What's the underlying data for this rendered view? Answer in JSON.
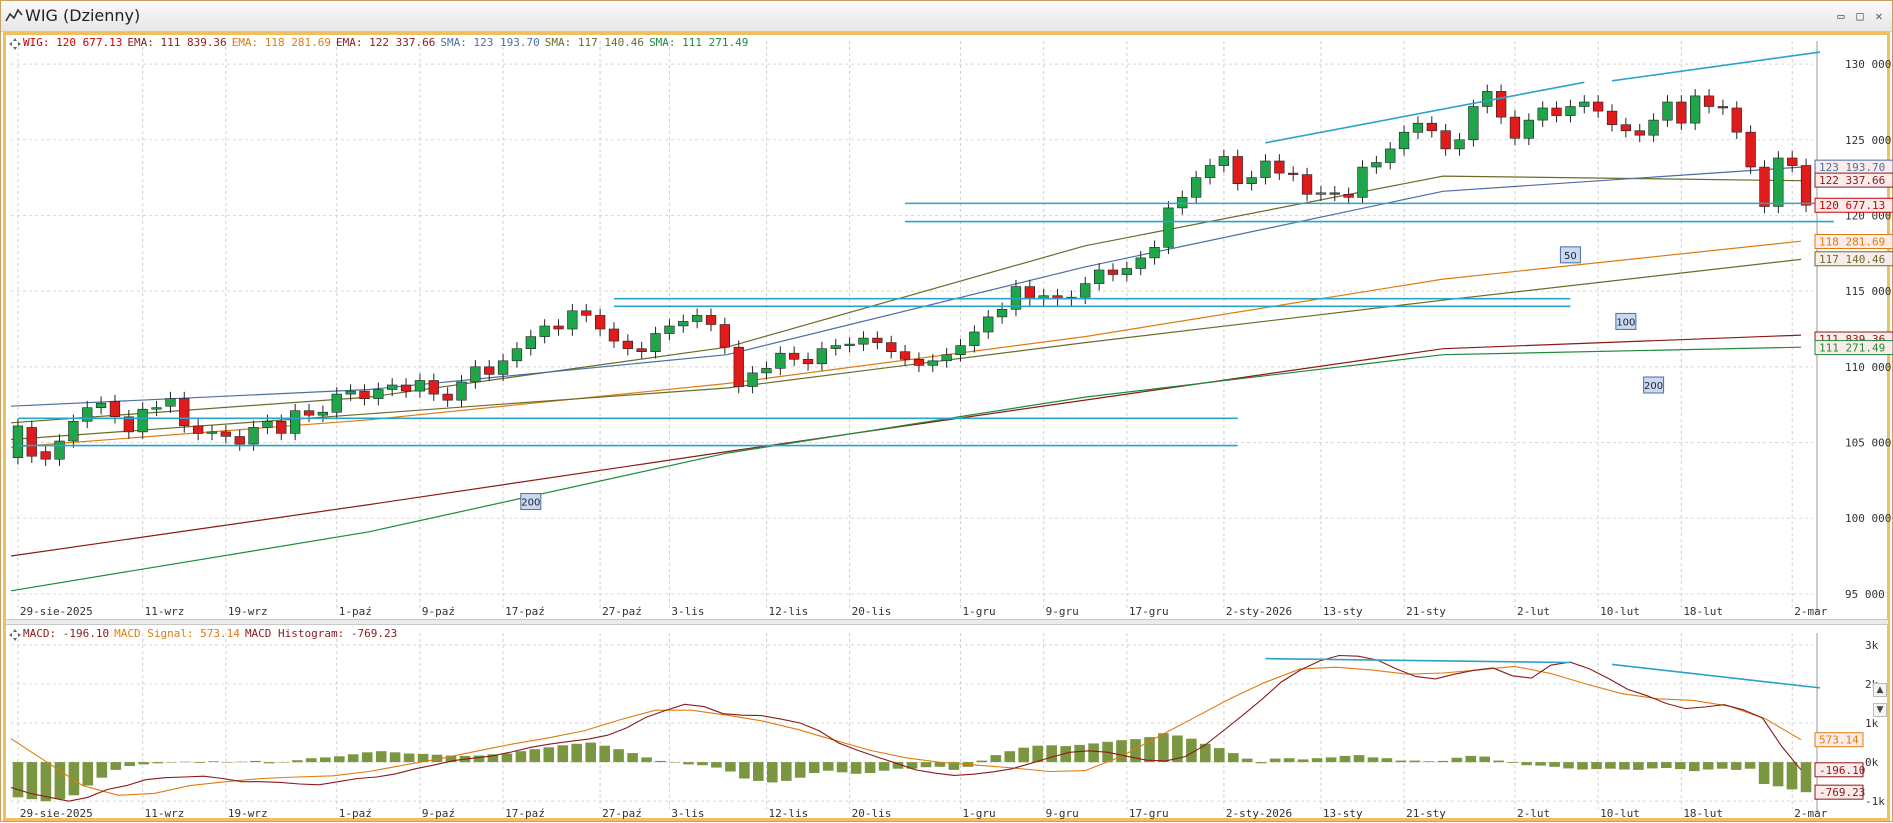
{
  "window": {
    "title": "WIG (Dzienny)",
    "btn_min": "▭",
    "btn_max": "□",
    "btn_close": "✕"
  },
  "price_legend": [
    {
      "label": "WIG:",
      "value": "120 677.13",
      "color": "#cc0000"
    },
    {
      "label": "EMA:",
      "value": "111 839.36",
      "color": "#8b1a1a"
    },
    {
      "label": "EMA:",
      "value": "118 281.69",
      "color": "#e07b10"
    },
    {
      "label": "EMA:",
      "value": "122 337.66",
      "color": "#8b1a1a"
    },
    {
      "label": "SMA:",
      "value": "123 193.70",
      "color": "#4a6fa5"
    },
    {
      "label": "SMA:",
      "value": "117 140.46",
      "color": "#6b6b2a"
    },
    {
      "label": "SMA:",
      "value": "111 271.49",
      "color": "#1f8a3b"
    }
  ],
  "macd_legend": [
    {
      "label": "MACD:",
      "value": "-196.10",
      "color": "#8b1a1a"
    },
    {
      "label": "MACD Signal:",
      "value": "573.14",
      "color": "#e07b10"
    },
    {
      "label": "MACD Histogram:",
      "value": "-769.23",
      "color": "#8b1a1a"
    }
  ],
  "chart_data": [
    {
      "type": "candlestick",
      "title": "WIG (Dzienny)",
      "ylim": [
        94000,
        131000
      ],
      "y_ticks": [
        95000,
        100000,
        105000,
        110000,
        115000,
        120000,
        125000,
        130000
      ],
      "y_tick_labels": [
        "95 000",
        "100 000",
        "105 000",
        "110 000",
        "115 000",
        "120 000",
        "125 000",
        "130 000"
      ],
      "x_labels": [
        "29-sie-2025",
        "11-wrz",
        "19-wrz",
        "1-paź",
        "9-paź",
        "17-paź",
        "27-paź",
        "3-lis",
        "12-lis",
        "20-lis",
        "1-gru",
        "9-gru",
        "17-gru",
        "2-sty-2026",
        "13-sty",
        "21-sty",
        "2-lut",
        "10-lut",
        "18-lut",
        "2-mar"
      ],
      "x_label_sessions": [
        0,
        9,
        15,
        23,
        29,
        35,
        42,
        47,
        54,
        60,
        68,
        74,
        80,
        87,
        94,
        100,
        108,
        114,
        120,
        128
      ],
      "candles_close": [
        106100,
        104100,
        103900,
        105100,
        106400,
        107300,
        107600,
        106700,
        105700,
        107200,
        107300,
        107900,
        106100,
        105600,
        105700,
        105400,
        104900,
        106000,
        106400,
        105600,
        107100,
        106800,
        107000,
        108200,
        108400,
        107900,
        108500,
        108800,
        108400,
        109100,
        108200,
        107800,
        109000,
        110000,
        109500,
        110400,
        111200,
        112000,
        112700,
        112500,
        113700,
        113400,
        112500,
        111700,
        111200,
        111000,
        112200,
        112700,
        113000,
        113400,
        112800,
        111300,
        108700,
        109600,
        109900,
        110900,
        110500,
        110200,
        111200,
        111400,
        111500,
        111900,
        111600,
        111000,
        110500,
        110100,
        110400,
        110800,
        111400,
        112300,
        113300,
        113800,
        115300,
        114500,
        114700,
        114500,
        114600,
        115500,
        116400,
        116100,
        116500,
        117200,
        117900,
        120500,
        121200,
        122500,
        123300,
        123900,
        122100,
        122500,
        123600,
        122800,
        122700,
        121400,
        121500,
        121400,
        121200,
        123200,
        123500,
        124400,
        125500,
        126100,
        125600,
        124400,
        125000,
        127200,
        128200,
        126500,
        125100,
        126300,
        127100,
        126600,
        127200,
        127500,
        126900,
        126000,
        125600,
        125300,
        126300,
        127500,
        126100,
        127900,
        127200,
        127100,
        125500,
        123200,
        120600,
        123800,
        123300,
        120677
      ],
      "candles_open": [
        104000,
        106000,
        104400,
        103900,
        105100,
        106400,
        107300,
        107700,
        106700,
        105700,
        107200,
        107400,
        107900,
        106100,
        105600,
        105700,
        105400,
        104900,
        106000,
        106400,
        105600,
        107100,
        106800,
        107000,
        108200,
        108400,
        107900,
        108500,
        108800,
        108400,
        109100,
        108200,
        107800,
        109000,
        110000,
        109500,
        110400,
        111200,
        112000,
        112700,
        112500,
        113700,
        113400,
        112500,
        111700,
        111200,
        111000,
        112200,
        112700,
        113000,
        113400,
        112800,
        111300,
        108700,
        109600,
        109900,
        110900,
        110500,
        110200,
        111200,
        111400,
        111500,
        111900,
        111600,
        111000,
        110500,
        110100,
        110400,
        110800,
        111400,
        112300,
        113300,
        113800,
        115300,
        114500,
        114700,
        114500,
        114600,
        115500,
        116400,
        116100,
        116500,
        117200,
        117900,
        120500,
        121200,
        122500,
        123300,
        123900,
        122100,
        122500,
        123600,
        122800,
        122700,
        121400,
        121500,
        121400,
        121200,
        123200,
        123500,
        124400,
        125500,
        126100,
        125600,
        124400,
        125000,
        127200,
        128200,
        126500,
        125100,
        126300,
        127100,
        126600,
        127200,
        127500,
        126900,
        126000,
        125600,
        125300,
        126300,
        127500,
        126100,
        127900,
        127200,
        127100,
        125500,
        123200,
        120600,
        123800,
        123300
      ],
      "ema_200": [
        97500,
        100900,
        104400,
        107800,
        111200,
        112100
      ],
      "sma_200": [
        95200,
        99100,
        104300,
        108000,
        110800,
        111300
      ],
      "sma_100": [
        105200,
        106900,
        108600,
        111600,
        114400,
        117100
      ],
      "ema_100": [
        104700,
        106500,
        108900,
        112000,
        115800,
        118300
      ],
      "sma_50": [
        107400,
        108500,
        110800,
        116600,
        121600,
        123200
      ],
      "ema_50": [
        106300,
        108000,
        111300,
        118000,
        122600,
        122300
      ],
      "markers": [
        "50",
        "100",
        "200",
        "200"
      ],
      "last_value_labels": [
        "123 193.70",
        "122 337.66",
        "120 677.13",
        "118 281.69",
        "117 140.46",
        "111 839.36",
        "111 271.49"
      ],
      "last_value_colors": [
        "#4a6fa5",
        "#8b1a1a",
        "#cc0000",
        "#e07b10",
        "#6b6b2a",
        "#8b1a1a",
        "#1f8a3b"
      ],
      "last_value_ys": [
        123193.7,
        122337.66,
        120677.13,
        118281.69,
        117140.46,
        111839.36,
        111271.49
      ]
    },
    {
      "type": "macd",
      "ylim": [
        -1200,
        3100
      ],
      "y_ticks": [
        -1000,
        0,
        1000,
        2000,
        3000
      ],
      "y_tick_labels": [
        "-1k",
        "0k",
        "1k",
        "2k",
        "3k"
      ],
      "histogram": [
        -900,
        -950,
        -1000,
        -950,
        -850,
        -600,
        -400,
        -200,
        -100,
        -60,
        -30,
        -10,
        10,
        -20,
        20,
        0,
        10,
        30,
        -30,
        0,
        50,
        100,
        120,
        150,
        200,
        250,
        280,
        250,
        220,
        210,
        190,
        170,
        160,
        170,
        200,
        220,
        280,
        330,
        380,
        430,
        470,
        500,
        420,
        330,
        230,
        120,
        30,
        0,
        -60,
        -80,
        -140,
        -240,
        -420,
        -480,
        -520,
        -480,
        -400,
        -280,
        -220,
        -260,
        -300,
        -280,
        -220,
        -170,
        -170,
        -130,
        -120,
        -200,
        -120,
        40,
        180,
        280,
        370,
        420,
        430,
        410,
        440,
        480,
        520,
        560,
        590,
        640,
        740,
        680,
        600,
        470,
        360,
        230,
        90,
        -30,
        90,
        100,
        70,
        100,
        120,
        160,
        180,
        120,
        100,
        40,
        40,
        20,
        30,
        110,
        160,
        140,
        40,
        -20,
        -80,
        -90,
        -120,
        -160,
        -190,
        -180,
        -170,
        -190,
        -200,
        -160,
        -150,
        -180,
        -230,
        -190,
        -170,
        -200,
        -170,
        -560,
        -620,
        -700,
        -769.23
      ],
      "macd": [
        -650,
        -800,
        -900,
        -1000,
        -900,
        -700,
        -600,
        -450,
        -400,
        -380,
        -360,
        -420,
        -500,
        -500,
        -520,
        -560,
        -580,
        -500,
        -420,
        -380,
        -300,
        -170,
        -70,
        40,
        100,
        160,
        260,
        380,
        460,
        530,
        590,
        690,
        880,
        1150,
        1320,
        1480,
        1420,
        1240,
        1200,
        1190,
        1100,
        1000,
        800,
        490,
        300,
        130,
        -30,
        -200,
        -280,
        -340,
        -310,
        -250,
        -170,
        -30,
        120,
        250,
        290,
        250,
        150,
        50,
        30,
        140,
        420,
        810,
        1200,
        1610,
        2050,
        2360,
        2590,
        2730,
        2710,
        2610,
        2380,
        2190,
        2130,
        2250,
        2350,
        2410,
        2210,
        2150,
        2480,
        2560,
        2390,
        2140,
        1860,
        1700,
        1500,
        1370,
        1410,
        1470,
        1340,
        1130,
        400,
        -196.1
      ],
      "signal": [
        600,
        0,
        -600,
        -850,
        -800,
        -600,
        -500,
        -420,
        -380,
        -350,
        -240,
        -70,
        90,
        280,
        460,
        620,
        800,
        1080,
        1330,
        1330,
        1200,
        1050,
        830,
        560,
        300,
        110,
        -10,
        -80,
        -150,
        -240,
        -220,
        140,
        630,
        1110,
        1600,
        2030,
        2380,
        2430,
        2360,
        2250,
        2280,
        2360,
        2450,
        2270,
        2000,
        1750,
        1620,
        1580,
        1430,
        1110,
        573.14
      ]
    }
  ]
}
